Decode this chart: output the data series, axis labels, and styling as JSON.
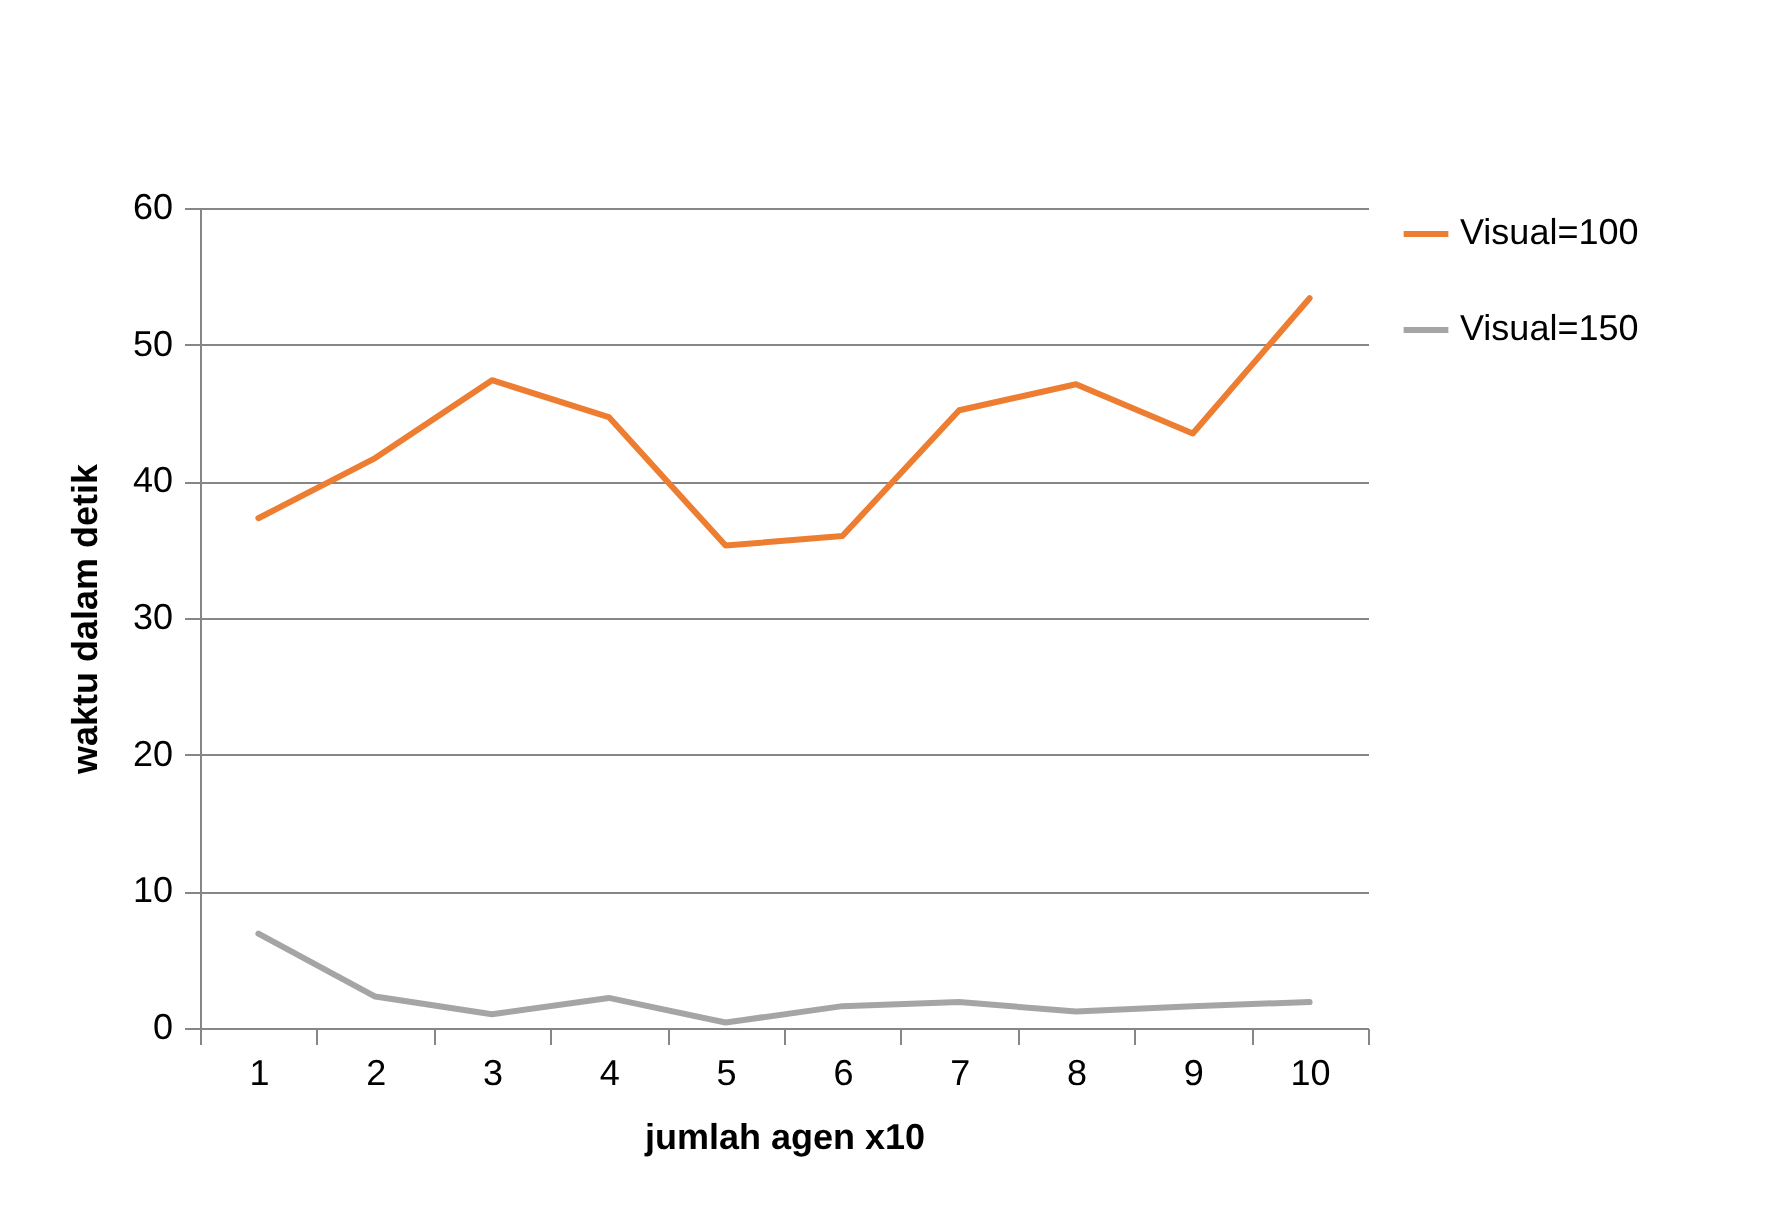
{
  "chart_data": {
    "type": "line",
    "xlabel": "jumlah agen x10",
    "ylabel": "waktu dalam detik",
    "categories": [
      "1",
      "2",
      "3",
      "4",
      "5",
      "6",
      "7",
      "8",
      "9",
      "10"
    ],
    "series": [
      {
        "name": "Visual=100",
        "color": "#ed7d31",
        "values": [
          37.3,
          41.7,
          47.4,
          44.7,
          35.3,
          36.0,
          45.2,
          47.1,
          43.5,
          53.4
        ]
      },
      {
        "name": "Visual=150",
        "color": "#a5a5a5",
        "values": [
          6.9,
          2.3,
          1.0,
          2.2,
          0.4,
          1.6,
          1.9,
          1.2,
          1.6,
          1.9
        ]
      }
    ],
    "ylim": [
      0,
      60
    ],
    "yticks": [
      0,
      10,
      20,
      30,
      40,
      50,
      60
    ],
    "grid": "y",
    "legend": "right",
    "marker": "none",
    "line_style": "solid"
  }
}
